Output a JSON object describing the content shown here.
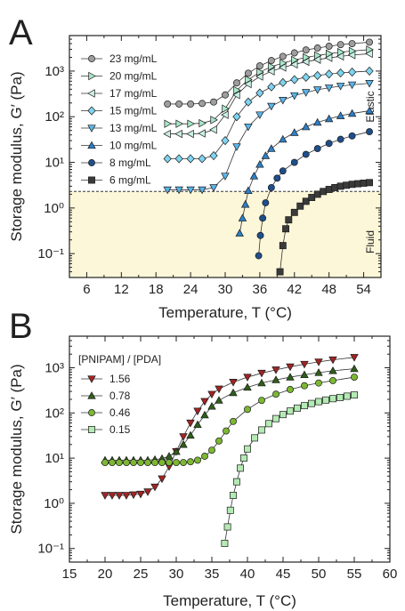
{
  "chart_data": [
    {
      "type": "scatter",
      "panel_label": "A",
      "xlabel": "Temperature, T (°C)",
      "ylabel": "Storage modulus, G′ (Pa)",
      "xlim": [
        3,
        57
      ],
      "ylim": [
        0.03,
        6000
      ],
      "yscale": "log",
      "xticks": [
        6,
        12,
        18,
        24,
        30,
        36,
        42,
        48,
        54
      ],
      "yticks": [
        "10⁻¹",
        "10⁰",
        "10¹",
        "10²",
        "10³"
      ],
      "threshold": 2.3,
      "region_labels": {
        "upper": "Elastic",
        "lower": "Fluid"
      },
      "legend_position": "top-left",
      "series": [
        {
          "name": "23 mg/mL",
          "marker": "circle",
          "color": "#9e9e9e",
          "x": [
            20,
            22,
            24,
            26,
            28,
            30,
            32,
            34,
            36,
            38,
            40,
            42,
            44,
            46,
            48,
            50,
            52,
            55
          ],
          "y": [
            190,
            190,
            190,
            195,
            210,
            300,
            550,
            900,
            1300,
            1700,
            2100,
            2500,
            2900,
            3200,
            3500,
            3800,
            4000,
            4300
          ]
        },
        {
          "name": "20 mg/mL",
          "marker": "triangle-right",
          "color": "#a8e6c8",
          "x": [
            20,
            22,
            24,
            26,
            28,
            30,
            32,
            34,
            36,
            38,
            40,
            42,
            44,
            46,
            48,
            50,
            52,
            55
          ],
          "y": [
            70,
            70,
            70,
            72,
            85,
            150,
            380,
            650,
            950,
            1250,
            1500,
            1750,
            2000,
            2200,
            2400,
            2600,
            2750,
            2950
          ]
        },
        {
          "name": "17 mg/mL",
          "marker": "triangle-left",
          "color": "#c8f0e4",
          "x": [
            20,
            22,
            24,
            26,
            28,
            30,
            32,
            34,
            36,
            38,
            40,
            42,
            44,
            46,
            48,
            50,
            52,
            55
          ],
          "y": [
            42,
            42,
            42,
            43,
            52,
            110,
            300,
            520,
            760,
            990,
            1200,
            1400,
            1600,
            1780,
            1950,
            2100,
            2250,
            2400
          ]
        },
        {
          "name": "15 mg/mL",
          "marker": "diamond",
          "color": "#7fd4f0",
          "x": [
            20,
            22,
            24,
            26,
            28,
            30,
            32,
            34,
            36,
            38,
            40,
            42,
            44,
            46,
            48,
            50,
            52,
            55
          ],
          "y": [
            12,
            12,
            12,
            12,
            14,
            30,
            100,
            210,
            330,
            450,
            560,
            650,
            730,
            800,
            860,
            910,
            950,
            1000
          ]
        },
        {
          "name": "13 mg/mL",
          "marker": "triangle-down",
          "color": "#5ab4e8",
          "x": [
            20,
            22,
            24,
            26,
            28,
            30,
            32,
            34,
            36,
            38,
            40,
            42,
            44,
            46,
            48,
            50,
            52,
            55
          ],
          "y": [
            2.5,
            2.5,
            2.5,
            2.5,
            2.8,
            5,
            22,
            60,
            110,
            170,
            230,
            290,
            340,
            390,
            430,
            470,
            500,
            540
          ]
        },
        {
          "name": "10 mg/mL",
          "marker": "triangle-up",
          "color": "#2e7fc6",
          "x": [
            32.5,
            33,
            33.5,
            34,
            35,
            36,
            37,
            38,
            40,
            42,
            44,
            46,
            48,
            50,
            52,
            55
          ],
          "y": [
            0.28,
            0.6,
            1.2,
            2.4,
            5,
            9,
            14,
            20,
            32,
            45,
            60,
            75,
            90,
            105,
            118,
            135
          ]
        },
        {
          "name": "8 mg/mL",
          "marker": "circle",
          "color": "#1e4f8c",
          "x": [
            35.8,
            36.1,
            36.5,
            37,
            38,
            39,
            40,
            42,
            44,
            46,
            48,
            50,
            52,
            55
          ],
          "y": [
            0.09,
            0.25,
            0.6,
            1.3,
            2.8,
            4.5,
            6.5,
            10,
            15,
            20,
            26,
            32,
            38,
            47
          ]
        },
        {
          "name": "6 mg/mL",
          "marker": "square",
          "color": "#3a3a3a",
          "x": [
            39.5,
            40,
            40.5,
            41,
            42,
            43,
            44,
            45,
            46,
            47,
            48,
            49,
            50,
            51,
            52,
            53,
            54,
            55
          ],
          "y": [
            0.04,
            0.15,
            0.35,
            0.55,
            0.8,
            1.1,
            1.4,
            1.7,
            2,
            2.3,
            2.55,
            2.8,
            3,
            3.15,
            3.3,
            3.4,
            3.5,
            3.6
          ]
        }
      ]
    },
    {
      "type": "scatter",
      "panel_label": "B",
      "xlabel": "Temperature, T (°C)",
      "ylabel": "Storage modulus, G′ (Pa)",
      "xlim": [
        15,
        60
      ],
      "ylim": [
        0.05,
        5000
      ],
      "yscale": "log",
      "xticks": [
        15,
        20,
        25,
        30,
        35,
        40,
        45,
        50,
        55,
        60
      ],
      "yticks": [
        "10⁻¹",
        "10⁰",
        "10¹",
        "10²",
        "10³"
      ],
      "legend_title": "[PNIPAM] / [PDA]",
      "legend_position": "top-left",
      "series": [
        {
          "name": "1.56",
          "marker": "triangle-down",
          "color": "#a32424",
          "x": [
            20,
            21,
            22,
            23,
            24,
            25,
            26,
            27,
            28,
            29,
            30,
            31,
            32,
            33,
            34,
            35,
            36,
            38,
            40,
            42,
            44,
            46,
            48,
            50,
            52,
            55
          ],
          "y": [
            1.5,
            1.5,
            1.5,
            1.5,
            1.55,
            1.6,
            1.8,
            2.3,
            3.5,
            6.5,
            14,
            30,
            60,
            110,
            180,
            260,
            340,
            480,
            620,
            760,
            900,
            1050,
            1200,
            1350,
            1500,
            1700
          ]
        },
        {
          "name": "0.78",
          "marker": "triangle-up",
          "color": "#2f5e1a",
          "x": [
            20,
            21,
            22,
            23,
            24,
            25,
            26,
            27,
            28,
            29,
            30,
            31,
            32,
            33,
            34,
            35,
            36,
            38,
            40,
            42,
            44,
            46,
            48,
            50,
            52,
            55
          ],
          "y": [
            9,
            9,
            9,
            9,
            9,
            9,
            9,
            9.3,
            9.8,
            11,
            14,
            20,
            32,
            55,
            90,
            140,
            190,
            280,
            370,
            460,
            540,
            620,
            700,
            780,
            860,
            950
          ]
        },
        {
          "name": "0.46",
          "marker": "circle",
          "color": "#7cb832",
          "x": [
            20,
            21,
            22,
            23,
            24,
            25,
            26,
            27,
            28,
            29,
            30,
            31,
            32,
            33,
            34,
            35,
            36,
            37,
            38,
            40,
            42,
            44,
            46,
            48,
            50,
            52,
            55
          ],
          "y": [
            8,
            8,
            8,
            8,
            8,
            8,
            8,
            8,
            8,
            8,
            8,
            8,
            8.3,
            9,
            11,
            15,
            24,
            40,
            65,
            120,
            190,
            260,
            330,
            400,
            460,
            520,
            620
          ]
        },
        {
          "name": "0.15",
          "marker": "square",
          "color": "#b4eab4",
          "x": [
            36.8,
            37.2,
            37.6,
            38,
            38.5,
            39,
            39.5,
            40,
            41,
            42,
            43,
            44,
            45,
            46,
            47,
            48,
            49,
            50,
            51,
            52,
            53,
            54,
            55
          ],
          "y": [
            0.13,
            0.3,
            0.7,
            1.5,
            3,
            6,
            10,
            16,
            28,
            42,
            58,
            75,
            92,
            110,
            128,
            145,
            162,
            178,
            193,
            207,
            220,
            235,
            250
          ]
        }
      ]
    }
  ]
}
